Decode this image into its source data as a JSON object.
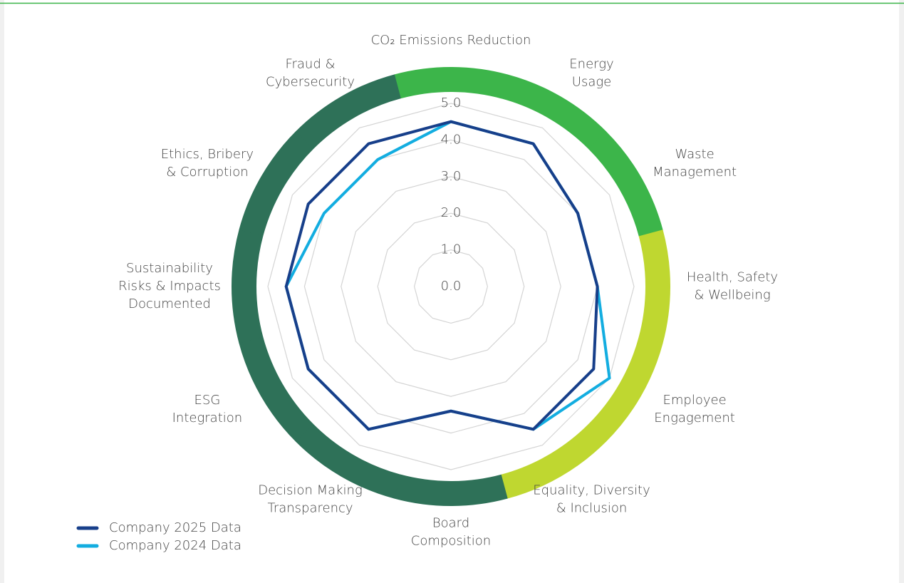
{
  "chart_data": {
    "type": "radar",
    "categories": [
      [
        "CO₂ Emissions Reduction"
      ],
      [
        "Energy",
        "Usage"
      ],
      [
        "Waste",
        "Management"
      ],
      [
        "Health, Safety",
        "& Wellbeing"
      ],
      [
        "Employee",
        "Engagement"
      ],
      [
        "Equality, Diversity",
        "& Inclusion"
      ],
      [
        "Board",
        "Composition"
      ],
      [
        "Decision Making",
        "Transparency"
      ],
      [
        "ESG",
        "Integration"
      ],
      [
        "Sustainability",
        "Risks & Impacts",
        "Documented"
      ],
      [
        "Ethics, Bribery",
        "& Corruption"
      ],
      [
        "Fraud &",
        "Cybersecurity"
      ]
    ],
    "series": [
      {
        "name": "Company 2025 Data",
        "color": "#173f8a",
        "values": [
          4.5,
          4.5,
          4.0,
          4.0,
          4.5,
          4.5,
          3.4,
          4.5,
          4.5,
          4.5,
          4.5,
          4.5
        ]
      },
      {
        "name": "Company 2024 Data",
        "color": "#13ade0",
        "values": [
          4.5,
          4.5,
          4.0,
          4.0,
          5.0,
          4.5,
          3.4,
          4.5,
          4.5,
          4.5,
          4.0,
          4.0
        ]
      }
    ],
    "rlim": [
      0,
      5
    ],
    "rticks": [
      {
        "value": 0,
        "label": "0.0"
      },
      {
        "value": 1,
        "label": "1.0"
      },
      {
        "value": 2,
        "label": "2.0"
      },
      {
        "value": 3,
        "label": "3.0"
      },
      {
        "value": 4,
        "label": "4.0"
      },
      {
        "value": 5,
        "label": "5.0"
      }
    ],
    "grid": true,
    "legend": "bottom-left",
    "ring_colors": [
      "#3cb54a",
      "#3cb54a",
      "#3cb54a",
      "#bfd730",
      "#bfd730",
      "#bfd730",
      "#2e7158",
      "#2e7158",
      "#2e7158",
      "#2e7158",
      "#2e7158",
      "#2e7158"
    ]
  }
}
